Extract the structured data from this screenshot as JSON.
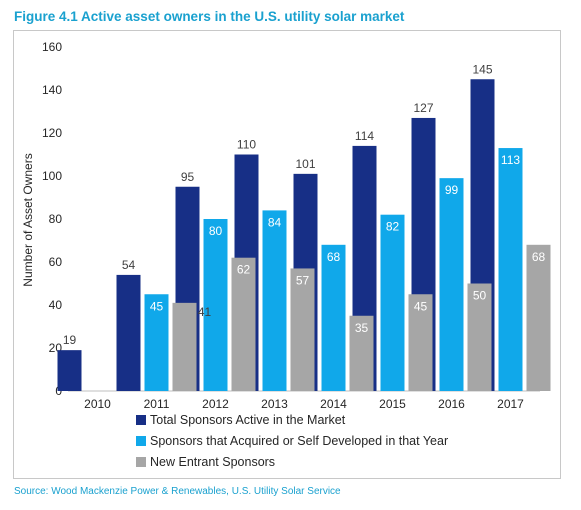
{
  "figure_title": "Figure 4.1 Active asset owners in the U.S. utility solar market",
  "source": "Source: Wood Mackenzie Power & Renewables, U.S. Utility Solar Service",
  "colors": {
    "title": "#1aa1cf",
    "series": [
      "#172f86",
      "#10a8ea",
      "#a6a6a6"
    ],
    "label_dark": "#404040",
    "label_light": "#ffffff"
  },
  "chart_data": {
    "type": "bar",
    "title": "",
    "xlabel": "",
    "ylabel": "Number of Asset Owners",
    "ylim": [
      0,
      160
    ],
    "yticks": [
      0,
      20,
      40,
      60,
      80,
      100,
      120,
      140,
      160
    ],
    "grid": false,
    "legend_position": "bottom",
    "categories": [
      "2010",
      "2011",
      "2012",
      "2013",
      "2014",
      "2015",
      "2016",
      "2017"
    ],
    "series": [
      {
        "name": "Total Sponsors Active in the Market",
        "values": [
          19,
          54,
          95,
          110,
          101,
          114,
          127,
          145
        ]
      },
      {
        "name": "Sponsors that Acquired or Self Developed in that Year",
        "values": [
          null,
          45,
          80,
          84,
          68,
          82,
          99,
          113
        ]
      },
      {
        "name": "New Entrant Sponsors",
        "values": [
          null,
          41,
          62,
          57,
          35,
          45,
          50,
          68
        ]
      }
    ]
  }
}
